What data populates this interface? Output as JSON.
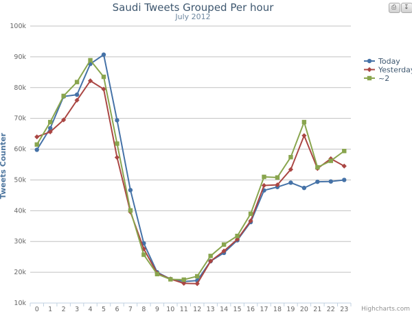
{
  "chart_data": {
    "type": "line",
    "title": "Saudi Tweets Grouped Per hour",
    "subtitle": "July 2012",
    "xlabel": "",
    "ylabel": "Tweets Counter",
    "categories": [
      "0",
      "1",
      "2",
      "3",
      "4",
      "5",
      "6",
      "7",
      "8",
      "9",
      "10",
      "11",
      "12",
      "13",
      "14",
      "15",
      "16",
      "17",
      "18",
      "19",
      "20",
      "21",
      "22",
      "23"
    ],
    "ylim": [
      10000,
      100000
    ],
    "yticks": [
      10000,
      20000,
      30000,
      40000,
      50000,
      60000,
      70000,
      80000,
      90000,
      100000
    ],
    "ytick_labels": [
      "10k",
      "20k",
      "30k",
      "40k",
      "50k",
      "60k",
      "70k",
      "80k",
      "90k",
      "100k"
    ],
    "grid": true,
    "legend_position": "right",
    "series": [
      {
        "name": "Today",
        "color": "#4572a7",
        "marker": "circle",
        "values": [
          59800,
          66800,
          77100,
          77700,
          87700,
          90700,
          69400,
          46700,
          29400,
          20000,
          17800,
          17000,
          17300,
          23600,
          26300,
          30400,
          36300,
          46600,
          47700,
          49100,
          47400,
          49400,
          49500,
          50000
        ]
      },
      {
        "name": "Yesterday",
        "color": "#aa4643",
        "marker": "diamond",
        "values": [
          64000,
          65600,
          69500,
          75900,
          82200,
          79500,
          57300,
          39600,
          27600,
          19700,
          17800,
          16400,
          16300,
          23600,
          26900,
          30700,
          36700,
          48200,
          48400,
          53400,
          64400,
          53700,
          56900,
          54500
        ]
      },
      {
        "name": "~2",
        "color": "#89a54e",
        "marker": "square",
        "values": [
          61500,
          68800,
          77300,
          81800,
          88900,
          83500,
          61800,
          40100,
          25700,
          19400,
          17700,
          17600,
          18700,
          25300,
          29000,
          31800,
          39000,
          51000,
          50800,
          57400,
          68800,
          54100,
          56200,
          59400
        ]
      }
    ],
    "credits": "Highcharts.com"
  },
  "toolbar": {
    "print_icon": "print-icon",
    "export_icon": "download-icon"
  }
}
